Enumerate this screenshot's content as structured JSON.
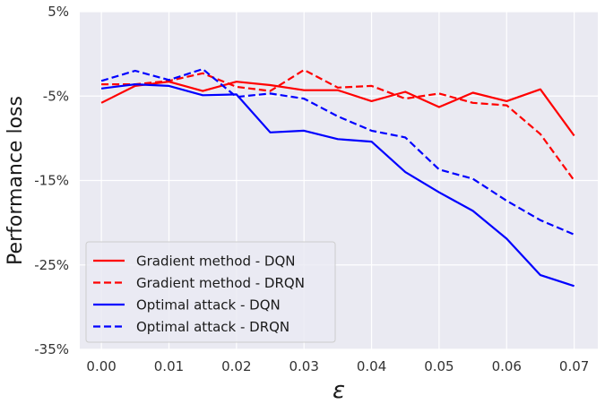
{
  "chart_data": {
    "type": "line",
    "title": "",
    "xlabel": "ε",
    "ylabel": "Performance loss",
    "x": [
      0.0,
      0.005,
      0.01,
      0.015,
      0.02,
      0.025,
      0.03,
      0.035,
      0.04,
      0.045,
      0.05,
      0.055,
      0.06,
      0.065,
      0.07
    ],
    "xlim": [
      -0.0032,
      0.0735
    ],
    "ylim": [
      -35,
      5
    ],
    "x_ticks": [
      0.0,
      0.01,
      0.02,
      0.03,
      0.04,
      0.05,
      0.06,
      0.07
    ],
    "x_tick_labels": [
      "0.00",
      "0.01",
      "0.02",
      "0.03",
      "0.04",
      "0.05",
      "0.06",
      "0.07"
    ],
    "y_ticks": [
      5,
      -5,
      -15,
      -25,
      -35
    ],
    "y_tick_labels": [
      "5%",
      "-5%",
      "-15%",
      "-25%",
      "-35%"
    ],
    "grid": true,
    "legend_position": "bottom-left",
    "colors": {
      "background": "#eaeaf2",
      "grid": "#ffffff",
      "gradient": "#ff0000",
      "optimal": "#0000ff"
    },
    "series": [
      {
        "name": "Gradient method - DQN",
        "color": "#ff0000",
        "dash": "solid",
        "values": [
          -5.8,
          -3.8,
          -3.3,
          -4.4,
          -3.3,
          -3.7,
          -4.3,
          -4.3,
          -5.6,
          -4.5,
          -6.3,
          -4.6,
          -5.6,
          -4.2,
          -9.7
        ]
      },
      {
        "name": "Gradient method - DRQN",
        "color": "#ff0000",
        "dash": "dashed",
        "values": [
          -3.6,
          -3.6,
          -3.2,
          -2.3,
          -3.9,
          -4.4,
          -1.9,
          -4.0,
          -3.8,
          -5.3,
          -4.7,
          -5.8,
          -6.1,
          -9.5,
          -15.0
        ]
      },
      {
        "name": "Optimal attack - DQN",
        "color": "#0000ff",
        "dash": "solid",
        "values": [
          -4.1,
          -3.6,
          -3.8,
          -4.9,
          -4.8,
          -9.3,
          -9.1,
          -10.1,
          -10.4,
          -14.0,
          -16.4,
          -18.6,
          -21.9,
          -26.2,
          -27.5
        ]
      },
      {
        "name": "Optimal attack - DRQN",
        "color": "#0000ff",
        "dash": "dashed",
        "values": [
          -3.2,
          -2.0,
          -3.1,
          -1.8,
          -5.1,
          -4.7,
          -5.3,
          -7.4,
          -9.1,
          -9.9,
          -13.7,
          -14.8,
          -17.4,
          -19.7,
          -21.4
        ]
      }
    ]
  }
}
